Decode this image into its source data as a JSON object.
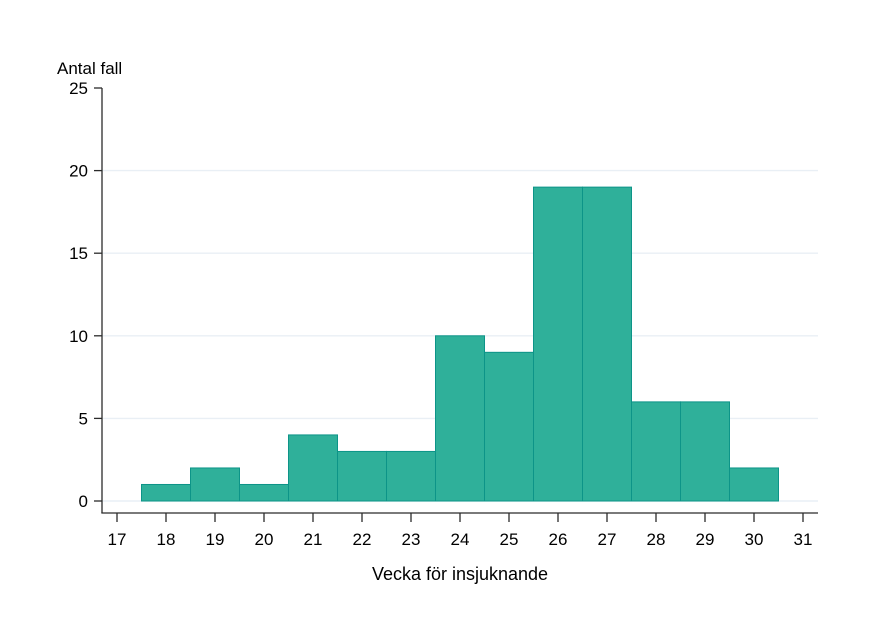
{
  "chart_data": {
    "type": "bar",
    "subtype": "histogram",
    "title": "",
    "ylabel": "Antal fall",
    "xlabel": "Vecka för insjuknande",
    "categories": [
      18,
      19,
      20,
      21,
      22,
      23,
      24,
      25,
      26,
      27,
      28,
      29,
      30
    ],
    "values": [
      1,
      2,
      1,
      4,
      3,
      3,
      10,
      9,
      19,
      19,
      6,
      6,
      2
    ],
    "bin_width": 1,
    "x_ticks": [
      17,
      18,
      19,
      20,
      21,
      22,
      23,
      24,
      25,
      26,
      27,
      28,
      29,
      30,
      31
    ],
    "y_ticks": [
      0,
      5,
      10,
      15,
      20,
      25
    ],
    "xlim": [
      16.7,
      31.3
    ],
    "ylim": [
      0,
      25
    ],
    "grid": "horizontal",
    "legend": "none",
    "colors": {
      "bar_fill": "#2FB09A",
      "bar_stroke": "#0D9488",
      "grid_line": "#E9EFF5",
      "axis_line": "#2B2B2B",
      "text": "#000000",
      "background": "#FFFFFF"
    }
  }
}
